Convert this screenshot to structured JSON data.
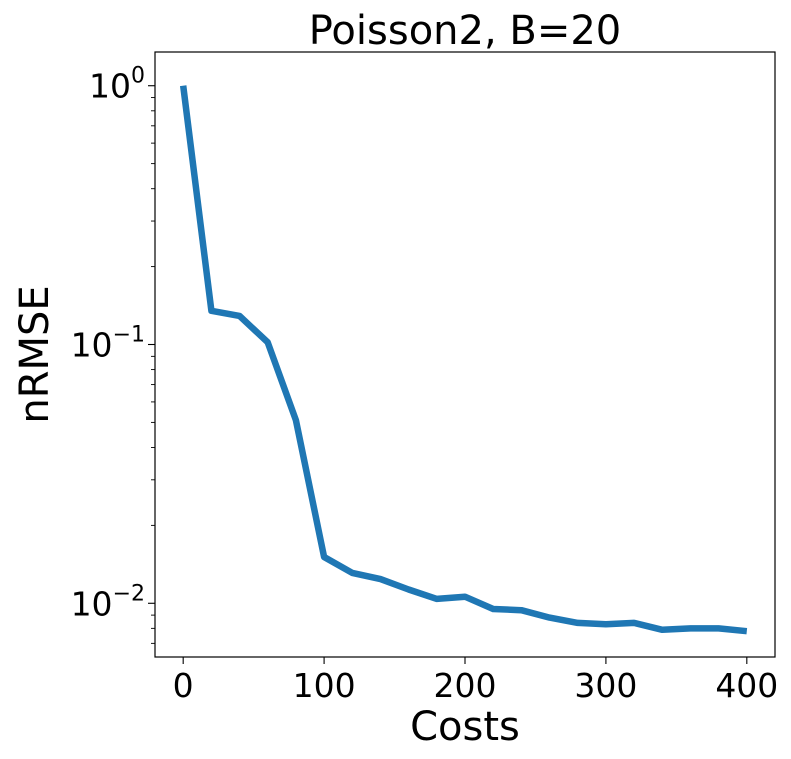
{
  "chart_data": {
    "type": "line",
    "title": "Poisson2, B=20",
    "xlabel": "Costs",
    "ylabel": "nRMSE",
    "yscale": "log",
    "grid": false,
    "legend": "none",
    "xlim": [
      -20,
      420
    ],
    "ylim": [
      0.0062,
      1.35
    ],
    "xticks": [
      "0",
      "100",
      "200",
      "300",
      "400"
    ],
    "xtick_values": [
      0,
      100,
      200,
      300,
      400
    ],
    "yticks": [
      {
        "value": 1,
        "base": "10",
        "exp": "0"
      },
      {
        "value": 0.1,
        "base": "10",
        "exp": "−1"
      },
      {
        "value": 0.01,
        "base": "10",
        "exp": "−2"
      }
    ],
    "series": [
      {
        "color": "#1f77b4",
        "x": [
          0,
          20,
          40,
          60,
          80,
          100,
          120,
          140,
          160,
          180,
          200,
          220,
          240,
          260,
          280,
          300,
          320,
          340,
          360,
          380,
          400
        ],
        "y": [
          1.0,
          0.135,
          0.129,
          0.102,
          0.051,
          0.0151,
          0.0131,
          0.0124,
          0.0113,
          0.0104,
          0.0106,
          0.0095,
          0.0094,
          0.0088,
          0.0084,
          0.0083,
          0.0084,
          0.0079,
          0.008,
          0.008,
          0.0078
        ]
      }
    ]
  }
}
